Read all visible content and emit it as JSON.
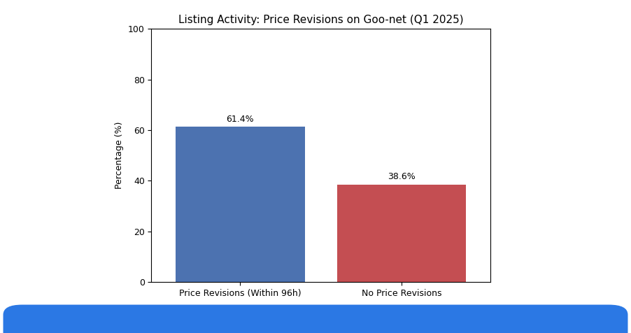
{
  "chart_data": {
    "type": "bar",
    "title": "Listing Activity: Price Revisions on Goo-net (Q1 2025)",
    "y_label": "Percentage (%)",
    "categories": [
      "Price Revisions (Within 96h)",
      "No Price Revisions"
    ],
    "values": [
      61.4,
      38.6
    ],
    "value_labels": [
      "61.4%",
      "38.6%"
    ],
    "colors": [
      "#4c72b0",
      "#c44e52"
    ],
    "ylim": [
      0,
      100
    ],
    "yticks": [
      0,
      20,
      40,
      60,
      80,
      100
    ],
    "grid": false,
    "data_labels": true
  }
}
